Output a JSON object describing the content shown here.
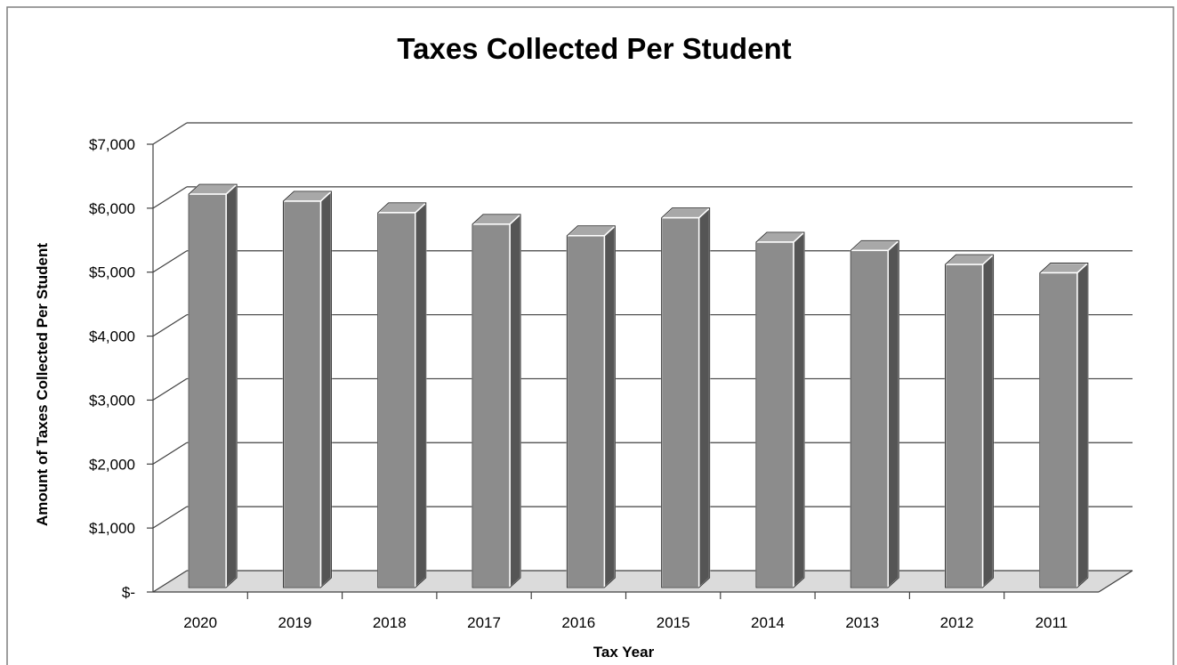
{
  "chart_data": {
    "type": "bar",
    "title": "Taxes Collected Per Student",
    "xlabel": "Tax Year",
    "ylabel": "Amount of Taxes Collected Per Student",
    "categories": [
      "2020",
      "2019",
      "2018",
      "2017",
      "2016",
      "2015",
      "2014",
      "2013",
      "2012",
      "2011"
    ],
    "values": [
      6150,
      6040,
      5860,
      5680,
      5500,
      5780,
      5400,
      5270,
      5050,
      4920
    ],
    "ylim": [
      0,
      7000
    ],
    "yticks": [
      0,
      1000,
      2000,
      3000,
      4000,
      5000,
      6000,
      7000
    ],
    "ytick_labels": [
      "$-",
      "$1,000",
      "$2,000",
      "$3,000",
      "$4,000",
      "$5,000",
      "$6,000",
      "$7,000"
    ],
    "grid": true,
    "legend": "none",
    "style": "3d-column",
    "colors": {
      "bar_front": "#8c8c8c",
      "bar_top": "#a8a8a8",
      "bar_side": "#555555",
      "bar_edge": "#ffffff",
      "grid": "#404040",
      "floor": "#bdbdbd",
      "text": "#000000"
    }
  }
}
